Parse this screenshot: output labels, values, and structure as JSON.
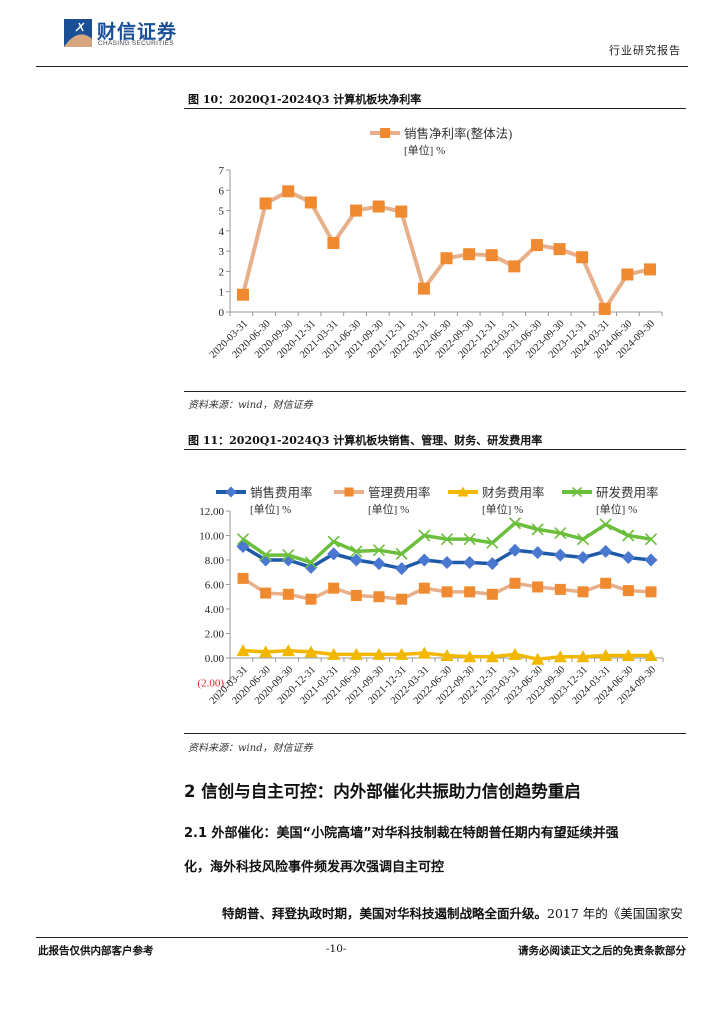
{
  "header": {
    "logo_cn": "财信证券",
    "logo_en": "CHASING SECURITIES",
    "doc_type": "行业研究报告"
  },
  "figure10": {
    "title": "图 10：2020Q1-2024Q3 计算机板块净利率",
    "source": "资料来源：wind，财信证券"
  },
  "figure11": {
    "title": "图 11：2020Q1-2024Q3 计算机板块销售、管理、财务、研发费用率",
    "source": "资料来源：wind，财信证券"
  },
  "chart_data": [
    {
      "type": "line",
      "title": "2020Q1-2024Q3 计算机板块净利率",
      "categories": [
        "2020-03-31",
        "2020-06-30",
        "2020-09-30",
        "2020-12-31",
        "2021-03-31",
        "2021-06-30",
        "2021-09-30",
        "2021-12-31",
        "2022-03-31",
        "2022-06-30",
        "2022-09-30",
        "2022-12-31",
        "2023-03-31",
        "2023-06-30",
        "2023-09-30",
        "2023-12-31",
        "2024-03-31",
        "2024-06-30",
        "2024-09-30"
      ],
      "series": [
        {
          "name": "销售净利率(整体法)",
          "unit": "[单位] %",
          "color": "#f08a30",
          "line_color": "#e8b08a",
          "marker": "square",
          "values": [
            0.85,
            5.35,
            5.95,
            5.4,
            3.4,
            5.0,
            5.2,
            4.95,
            1.15,
            2.65,
            2.85,
            2.8,
            2.25,
            3.3,
            3.1,
            2.7,
            0.15,
            1.85,
            2.1
          ]
        }
      ],
      "yticks": [
        0,
        1,
        2,
        3,
        4,
        5,
        6,
        7
      ],
      "ylim": [
        0,
        7
      ],
      "xlabel": "",
      "ylabel": "",
      "legend_position": "top",
      "grid": false
    },
    {
      "type": "line",
      "title": "2020Q1-2024Q3 计算机板块销售、管理、财务、研发费用率",
      "categories": [
        "2020-03-31",
        "2020-06-30",
        "2020-09-30",
        "2020-12-31",
        "2021-03-31",
        "2021-06-30",
        "2021-09-30",
        "2021-12-31",
        "2022-03-31",
        "2022-06-30",
        "2022-09-30",
        "2022-12-31",
        "2023-03-31",
        "2023-06-30",
        "2023-09-30",
        "2023-12-31",
        "2024-03-31",
        "2024-06-30",
        "2024-09-30"
      ],
      "series": [
        {
          "name": "销售费用率",
          "unit": "[单位] %",
          "color": "#4a78d0",
          "line_color": "#1f5aa8",
          "marker": "diamond",
          "values": [
            9.1,
            8.0,
            8.0,
            7.4,
            8.5,
            8.0,
            7.7,
            7.3,
            8.0,
            7.8,
            7.8,
            7.7,
            8.8,
            8.6,
            8.4,
            8.2,
            8.7,
            8.2,
            8.0
          ]
        },
        {
          "name": "管理费用率",
          "unit": "[单位] %",
          "color": "#f08a30",
          "line_color": "#e8b08a",
          "marker": "square",
          "values": [
            6.5,
            5.3,
            5.2,
            4.8,
            5.7,
            5.1,
            5.0,
            4.8,
            5.7,
            5.4,
            5.4,
            5.2,
            6.1,
            5.8,
            5.6,
            5.4,
            6.1,
            5.5,
            5.4
          ]
        },
        {
          "name": "财务费用率",
          "unit": "[单位] %",
          "color": "#f2b800",
          "line_color": "#f2b800",
          "marker": "triangle",
          "values": [
            0.6,
            0.5,
            0.6,
            0.5,
            0.3,
            0.3,
            0.3,
            0.3,
            0.4,
            0.2,
            0.1,
            0.1,
            0.3,
            -0.1,
            0.1,
            0.1,
            0.2,
            0.2,
            0.2
          ]
        },
        {
          "name": "研发费用率",
          "unit": "[单位] %",
          "color": "#6cbf3c",
          "line_color": "#6cbf3c",
          "marker": "x",
          "values": [
            9.7,
            8.4,
            8.4,
            7.8,
            9.5,
            8.7,
            8.8,
            8.5,
            10.0,
            9.7,
            9.7,
            9.4,
            11.0,
            10.5,
            10.2,
            9.7,
            10.9,
            10.0,
            9.7
          ]
        }
      ],
      "yticks": [
        "(2.00)",
        "0.00",
        "2.00",
        "4.00",
        "6.00",
        "8.00",
        "10.00",
        "12.00"
      ],
      "ylim": [
        -2,
        12
      ],
      "negative_tick_color": "#e02020",
      "xlabel": "",
      "ylabel": "",
      "legend_position": "top",
      "grid": false
    }
  ],
  "section": {
    "h2": "2 信创与自主可控：内外部催化共振助力信创趋势重启",
    "h3_line1": "2.1 外部催化：美国“小院高墙”对华科技制裁在特朗普任期内有望延续并强",
    "h3_line2": "化，海外科技风险事件频发再次强调自主可控",
    "para_bold": "特朗普、拜登执政时期，美国对华科技遏制战略全面升级。",
    "para_rest": "2017 年的《美国国家安"
  },
  "footer": {
    "left": "此报告仅供内部客户参考",
    "page": "-10-",
    "right": "请务必阅读正文之后的免责条款部分"
  }
}
